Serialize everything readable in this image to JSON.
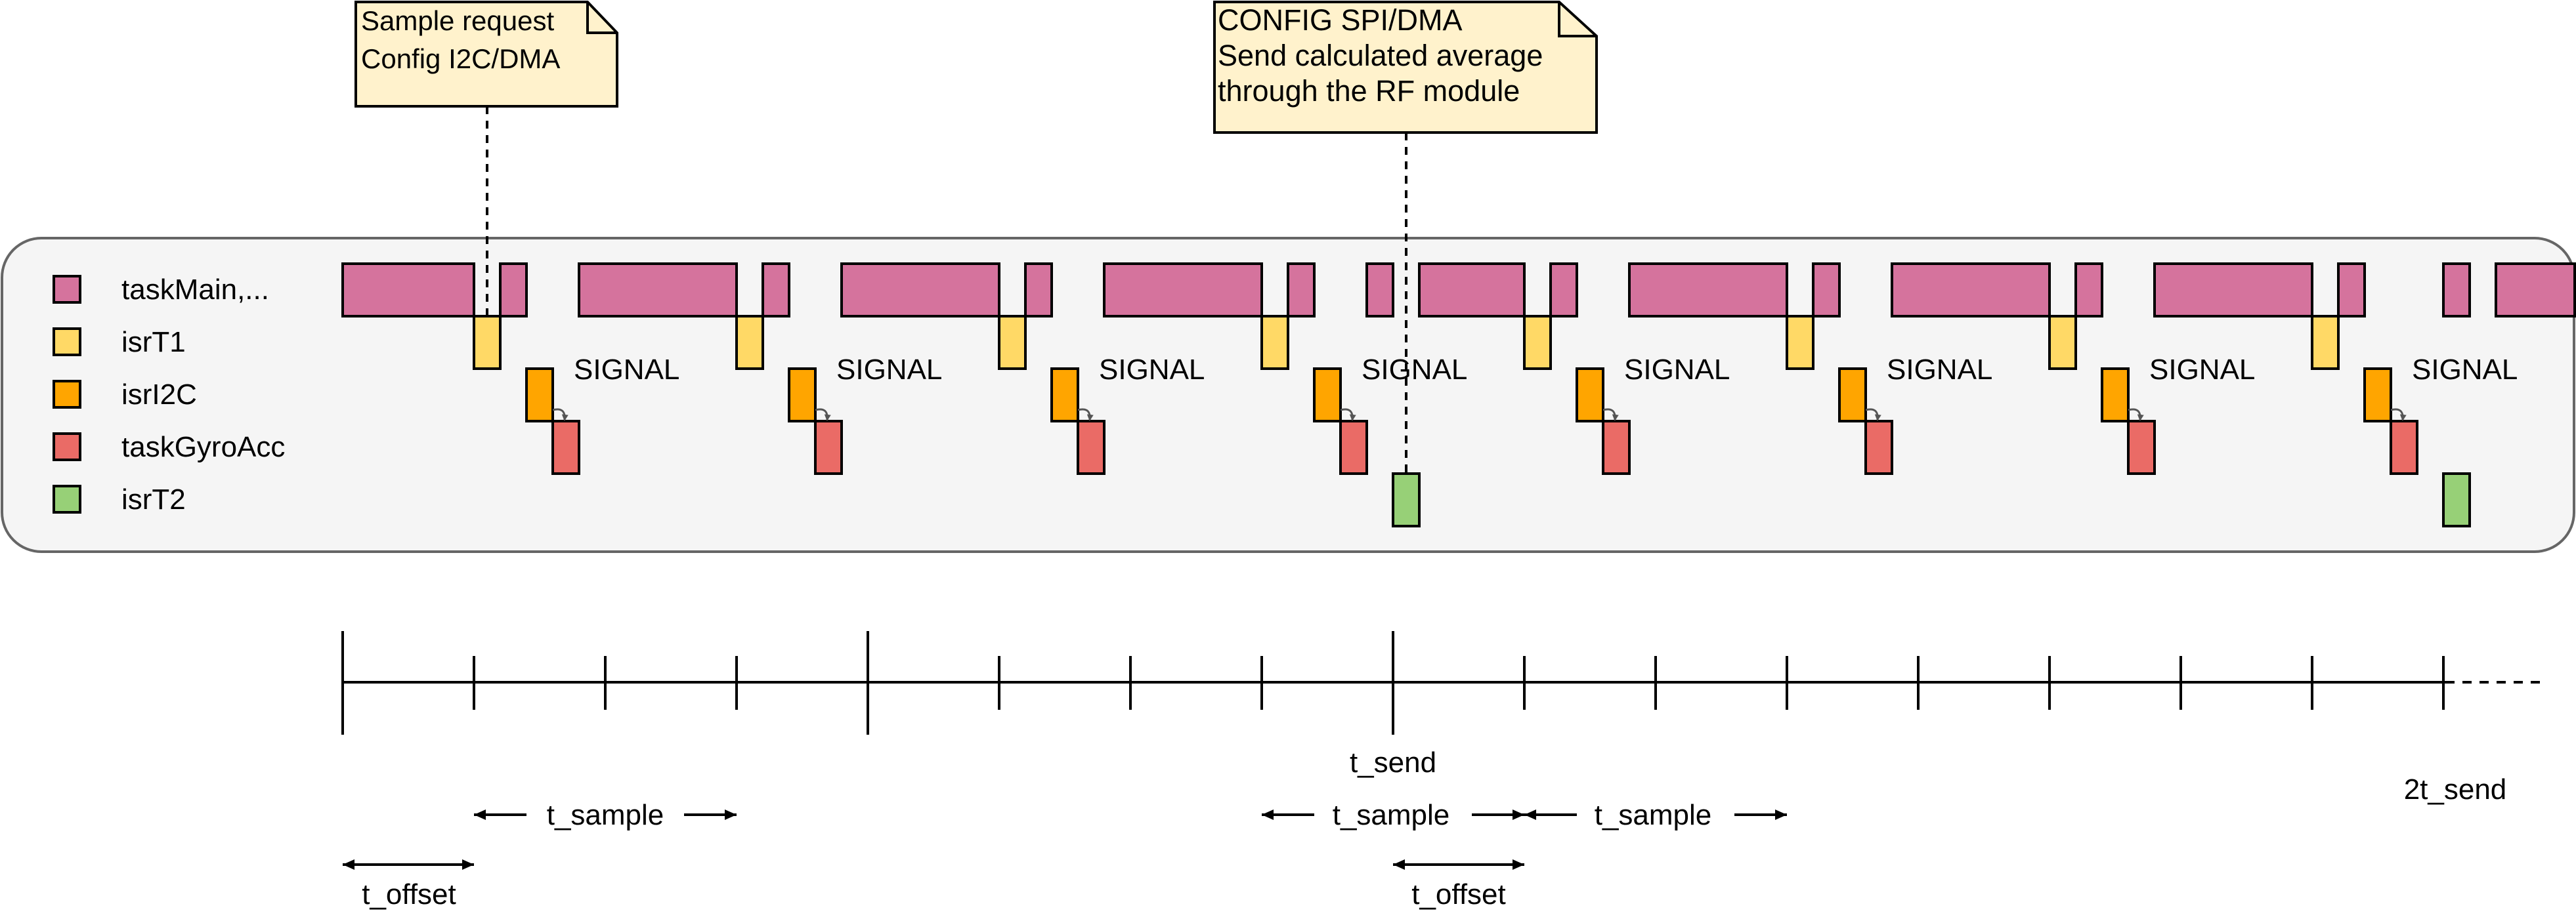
{
  "colors": {
    "taskMain": "#D5739D",
    "isrT1": "#FFD966",
    "isrI2C": "#FFA500",
    "taskGyroAcc": "#EA6B66",
    "isrT2": "#97D077",
    "note_fill": "#FFF2CC",
    "panel_fill": "#F5F5F5",
    "panel_stroke": "#666666",
    "arrow": "#555555"
  },
  "notes": {
    "sample": {
      "line1": "Sample request",
      "line2": "Config I2C/DMA"
    },
    "send": {
      "line1": "CONFIG SPI/DMA",
      "line2": "Send calculated average",
      "line3": "through the RF module"
    }
  },
  "legend": [
    {
      "label": "taskMain,...",
      "key": "taskMain"
    },
    {
      "label": "isrT1",
      "key": "isrT1"
    },
    {
      "label": "isrI2C",
      "key": "isrI2C"
    },
    {
      "label": "taskGyroAcc",
      "key": "taskGyroAcc"
    },
    {
      "label": "isrT2",
      "key": "isrT2"
    }
  ],
  "timeline": {
    "signal_label": "SIGNAL",
    "cycles": 8,
    "t_send_label": "t_send",
    "two_t_send_label": "2t_send",
    "t_sample_label": "t_sample",
    "t_offset_label": "t_offset",
    "continuation": "···"
  }
}
